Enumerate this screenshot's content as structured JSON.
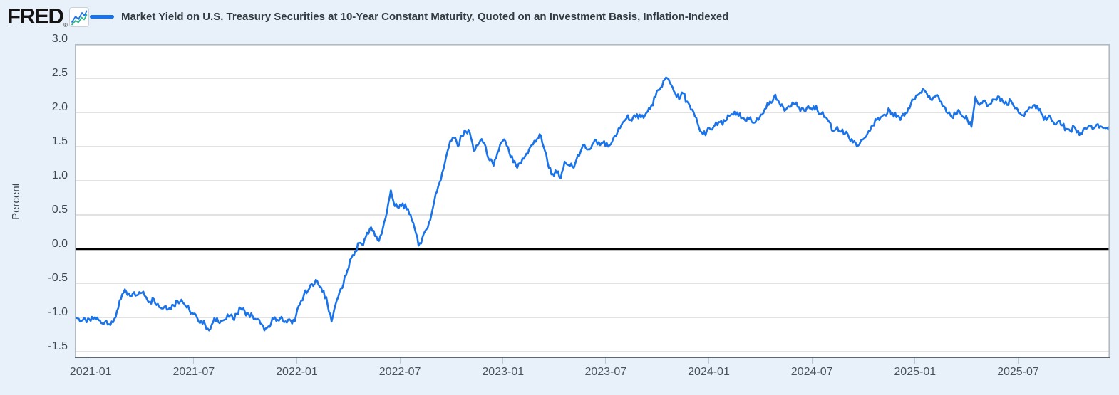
{
  "brand": {
    "logo_text": "FRED",
    "registered_mark": "®",
    "icon_line_color_1": "#1a73e8",
    "icon_line_color_2": "#2eb88a"
  },
  "legend": {
    "series_label": "Market Yield on U.S. Treasury Securities at 10-Year Constant Maturity, Quoted on an Investment Basis, Inflation-Indexed",
    "series_color": "#1a73e8"
  },
  "chart_data": {
    "type": "line",
    "title": "Market Yield on U.S. Treasury Securities at 10-Year Constant Maturity, Quoted on an Investment Basis, Inflation-Indexed",
    "ylabel": "Percent",
    "ylim": [
      -1.59,
      3.0
    ],
    "grid": true,
    "zero_line_value": 0,
    "zero_line_color": "#000000",
    "gridline_color": "#d9d9d9",
    "plot_background": "#ffffff",
    "page_background": "#e8f1fa",
    "y_ticks": [
      3.0,
      2.5,
      2.0,
      1.5,
      1.0,
      0.5,
      0.0,
      -0.5,
      -1.0,
      -1.5
    ],
    "y_tick_labels": [
      "3.0",
      "2.5",
      "2.0",
      "1.5",
      "1.0",
      "0.5",
      "0.0",
      "-0.5",
      "-1.0",
      "-1.5"
    ],
    "x_tick_labels": [
      "2021-01",
      "2021-07",
      "2022-01",
      "2022-07",
      "2023-01",
      "2023-07",
      "2024-01",
      "2024-07",
      "2025-01",
      "2025-07"
    ],
    "x_tick_week_index": [
      4.0,
      30.1,
      56.2,
      82.3,
      108.4,
      134.4,
      160.5,
      186.6,
      212.7,
      238.8
    ],
    "series": {
      "name": "Market Yield on U.S. Treasury Securities at 10-Year Constant Maturity, Quoted on an Investment Basis, Inflation-Indexed",
      "units": "Percent",
      "start": "2020-12",
      "end": "2025-11",
      "frequency": "weekly (approx. values read from chart)",
      "values": [
        -0.98,
        -1.02,
        -1.04,
        -1.07,
        -1.05,
        -1.0,
        -1.04,
        -1.09,
        -1.05,
        -1.11,
        -1.02,
        -0.86,
        -0.66,
        -0.62,
        -0.69,
        -0.63,
        -0.67,
        -0.64,
        -0.7,
        -0.77,
        -0.73,
        -0.8,
        -0.87,
        -0.83,
        -0.86,
        -0.82,
        -0.76,
        -0.74,
        -0.83,
        -0.89,
        -0.95,
        -1.01,
        -1.05,
        -1.11,
        -1.19,
        -1.07,
        -1.01,
        -1.05,
        -1.03,
        -0.99,
        -1.01,
        -0.95,
        -0.87,
        -0.91,
        -0.95,
        -0.98,
        -1.03,
        -1.09,
        -1.19,
        -1.13,
        -1.01,
        -1.05,
        -1.01,
        -1.07,
        -1.03,
        -1.09,
        -0.97,
        -0.81,
        -0.67,
        -0.61,
        -0.51,
        -0.45,
        -0.55,
        -0.61,
        -0.82,
        -1.06,
        -0.81,
        -0.63,
        -0.51,
        -0.31,
        -0.13,
        -0.03,
        0.09,
        0.06,
        0.24,
        0.32,
        0.19,
        0.12,
        0.31,
        0.54,
        0.86,
        0.63,
        0.6,
        0.67,
        0.58,
        0.5,
        0.31,
        0.05,
        0.17,
        0.29,
        0.43,
        0.7,
        0.92,
        1.12,
        1.35,
        1.58,
        1.63,
        1.5,
        1.66,
        1.72,
        1.7,
        1.44,
        1.52,
        1.61,
        1.5,
        1.3,
        1.22,
        1.41,
        1.56,
        1.58,
        1.41,
        1.27,
        1.19,
        1.26,
        1.36,
        1.46,
        1.53,
        1.61,
        1.66,
        1.44,
        1.19,
        1.1,
        1.12,
        1.04,
        1.28,
        1.23,
        1.2,
        1.31,
        1.42,
        1.53,
        1.46,
        1.53,
        1.59,
        1.52,
        1.58,
        1.5,
        1.57,
        1.65,
        1.77,
        1.87,
        1.96,
        1.88,
        1.93,
        1.97,
        1.92,
        2.01,
        2.11,
        2.23,
        2.33,
        2.46,
        2.5,
        2.4,
        2.28,
        2.19,
        2.28,
        2.16,
        2.04,
        1.94,
        1.78,
        1.68,
        1.73,
        1.75,
        1.81,
        1.86,
        1.82,
        1.89,
        1.96,
        2.01,
        1.95,
        1.92,
        1.87,
        1.93,
        1.85,
        1.89,
        1.97,
        2.06,
        2.16,
        2.23,
        2.18,
        2.12,
        2.04,
        2.08,
        2.13,
        2.08,
        2.06,
        2.02,
        2.06,
        2.09,
        2.03,
        1.98,
        1.93,
        1.86,
        1.73,
        1.79,
        1.72,
        1.69,
        1.63,
        1.56,
        1.5,
        1.59,
        1.63,
        1.73,
        1.81,
        1.89,
        1.93,
        1.97,
        2.06,
        1.99,
        1.93,
        1.89,
        1.95,
        2.06,
        2.19,
        2.25,
        2.29,
        2.33,
        2.23,
        2.18,
        2.25,
        2.16,
        2.09,
        1.99,
        1.93,
        1.97,
        2.01,
        1.93,
        1.89,
        1.79,
        2.23,
        2.11,
        2.17,
        2.09,
        2.13,
        2.19,
        2.23,
        2.15,
        2.11,
        2.17,
        2.06,
        1.99,
        1.96,
        2.01,
        2.07,
        2.11,
        2.03,
        1.96,
        1.89,
        1.93,
        1.83,
        1.87,
        1.81,
        1.76,
        1.73,
        1.79,
        1.73,
        1.69,
        1.76,
        1.81,
        1.77,
        1.83,
        1.79,
        1.77,
        1.81
      ]
    }
  }
}
